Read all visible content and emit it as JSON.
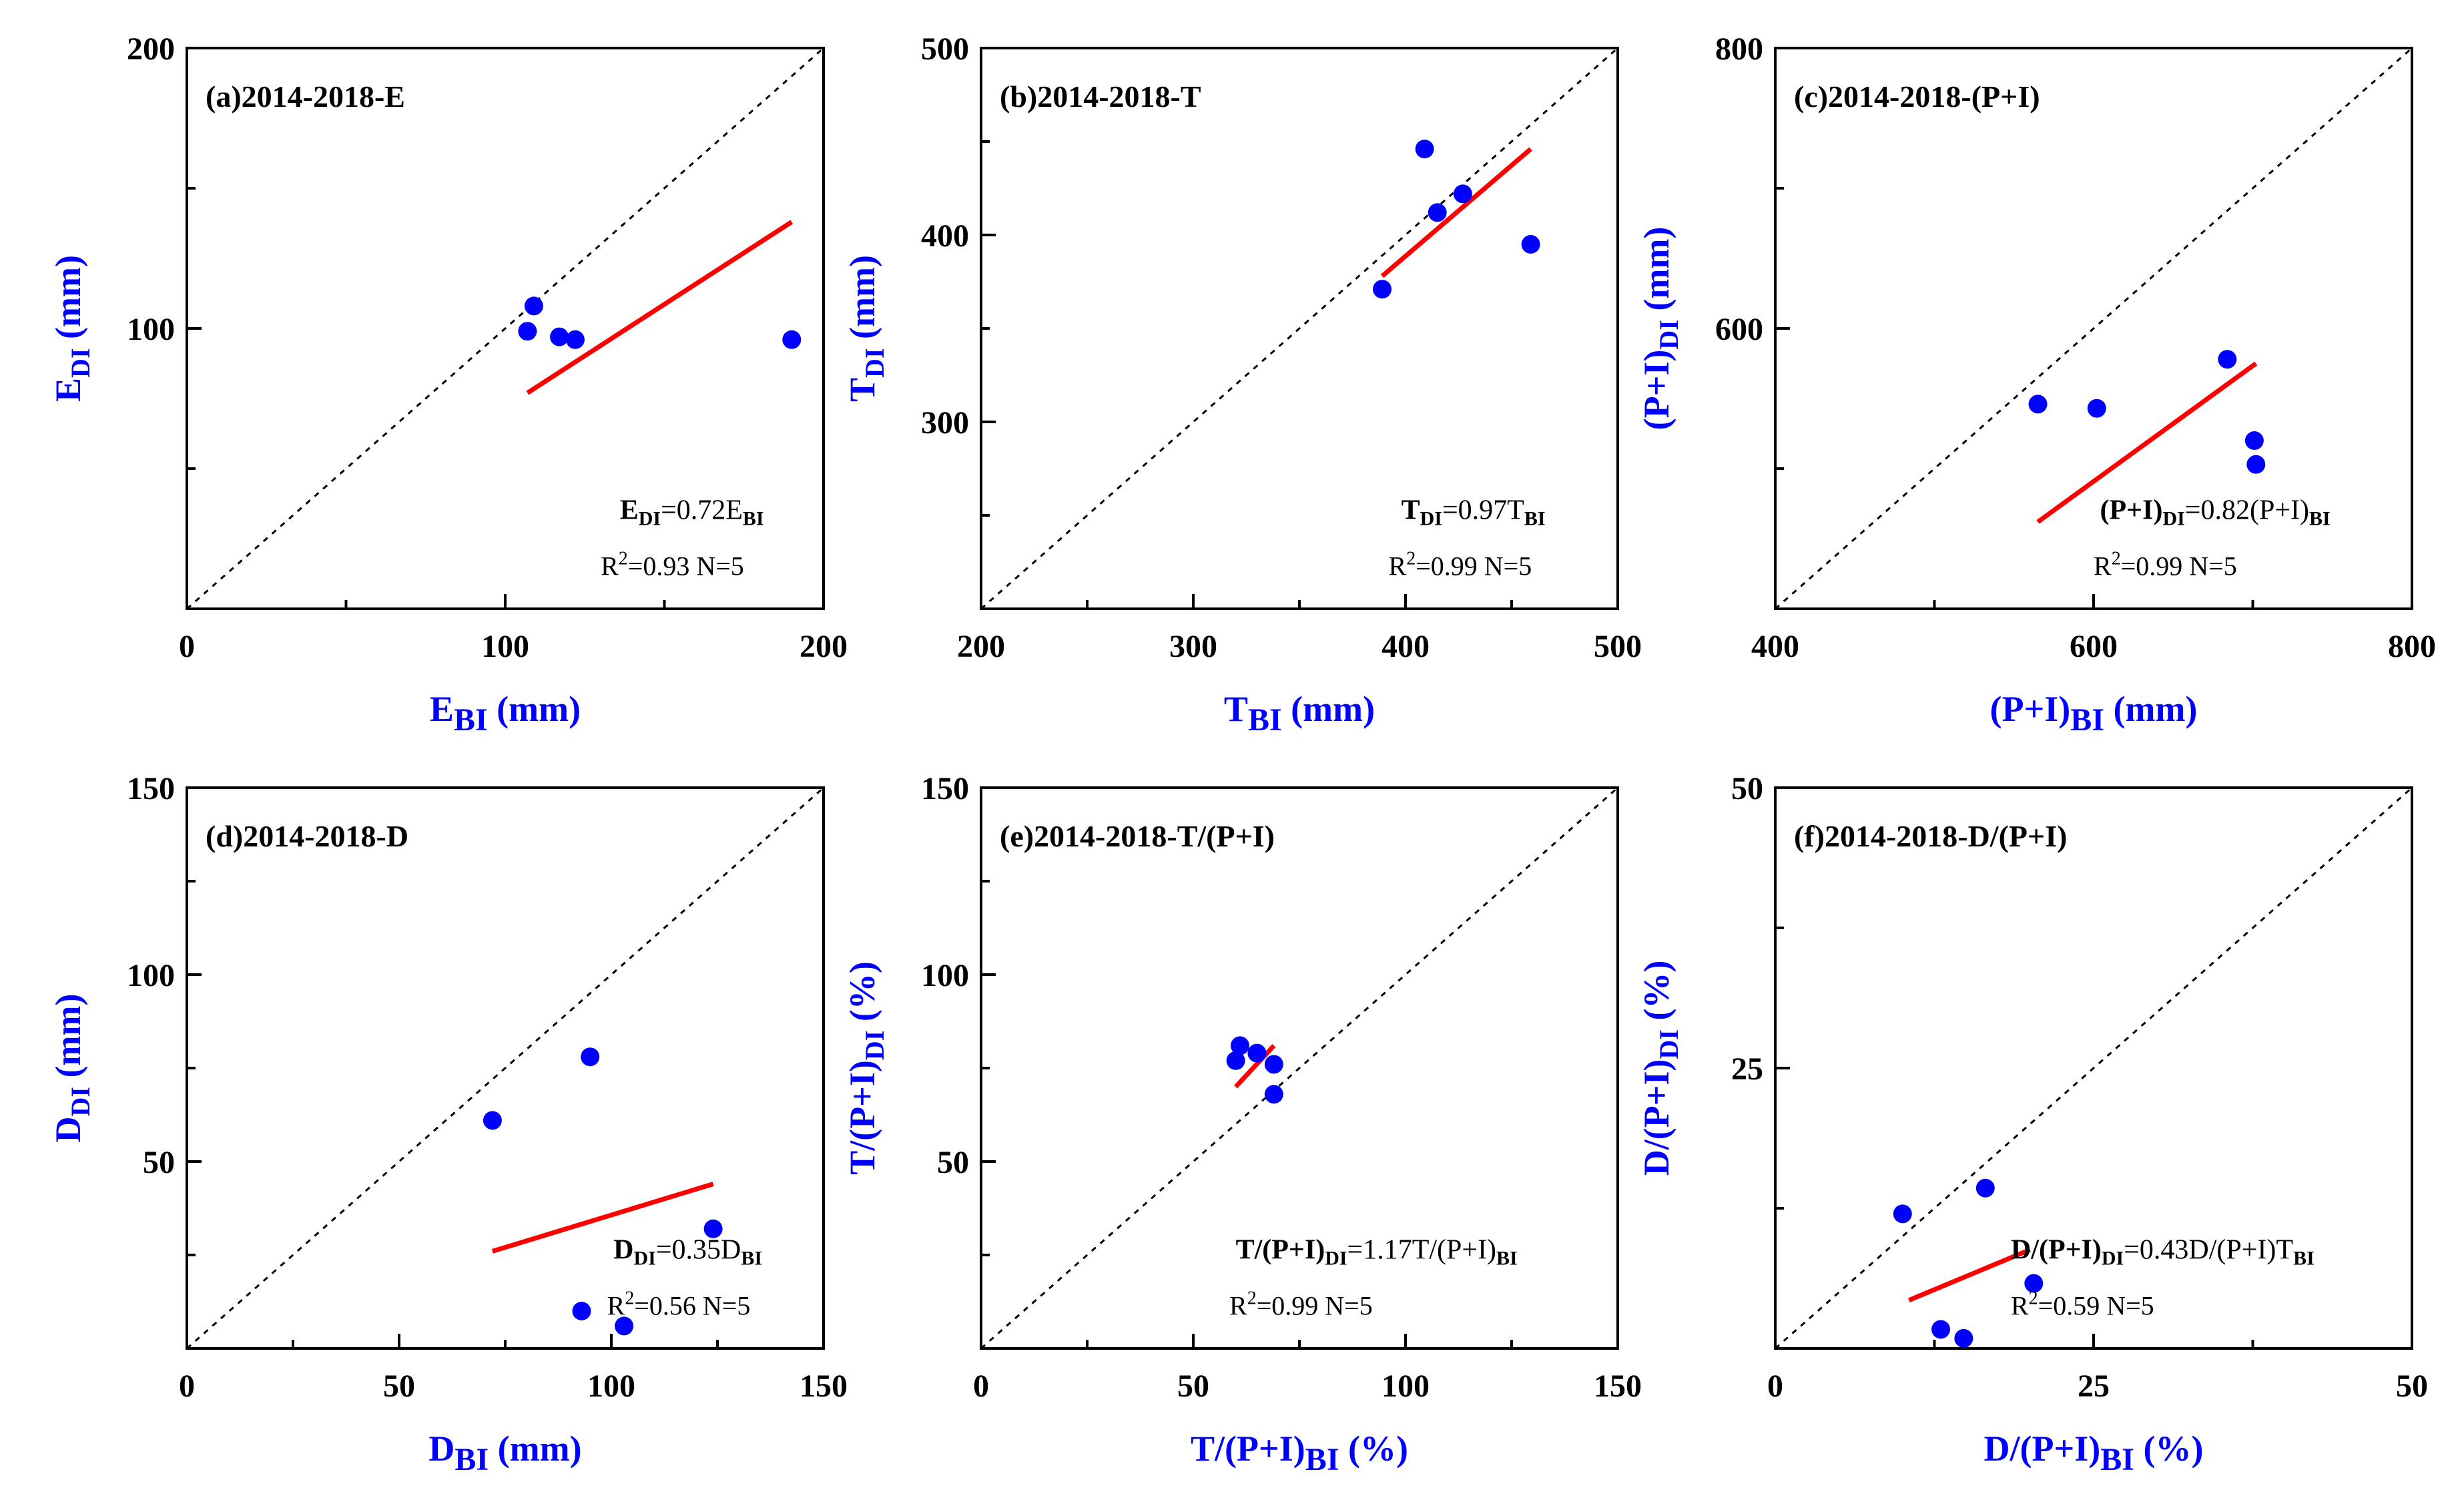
{
  "chart_data": [
    {
      "type": "scatter",
      "title": "(a)2014-2018-E",
      "xlabel": {
        "main": "E",
        "sub": "BI",
        "unit": " (mm)"
      },
      "ylabel": {
        "main": "E",
        "sub": "DI",
        "unit": " (mm)"
      },
      "xlim": [
        0,
        200
      ],
      "ylim": [
        0,
        200
      ],
      "xticks": [
        "0",
        "100",
        "200"
      ],
      "yticks": [
        "100",
        "200"
      ],
      "points": [
        [
          107,
          99
        ],
        [
          109,
          108
        ],
        [
          117,
          97
        ],
        [
          122,
          96
        ],
        [
          190,
          96
        ]
      ],
      "fit": {
        "x": [
          107,
          190
        ],
        "y": [
          77,
          138
        ]
      },
      "equation": {
        "lhs": "E",
        "lhs_sub": "DI",
        "mid": "=0.72E",
        "rhs_sub": "BI"
      },
      "r2": "=0.93",
      "n": "N=5"
    },
    {
      "type": "scatter",
      "title": "(b)2014-2018-T",
      "xlabel": {
        "main": "T",
        "sub": "BI",
        "unit": " (mm)"
      },
      "ylabel": {
        "main": "T",
        "sub": "DI",
        "unit": " (mm)"
      },
      "xlim": [
        200,
        500
      ],
      "ylim": [
        200,
        500
      ],
      "xticks": [
        "200",
        "300",
        "400",
        "500"
      ],
      "yticks": [
        "300",
        "400",
        "500"
      ],
      "points": [
        [
          389,
          371
        ],
        [
          409,
          446
        ],
        [
          415,
          412
        ],
        [
          427,
          422
        ],
        [
          459,
          395
        ]
      ],
      "fit": {
        "x": [
          389,
          459
        ],
        "y": [
          378,
          446
        ]
      },
      "equation": {
        "lhs": "T",
        "lhs_sub": "DI",
        "mid": "=0.97T",
        "rhs_sub": "BI"
      },
      "r2": "=0.99",
      "n": "N=5"
    },
    {
      "type": "scatter",
      "title": "(c)2014-2018-(P+I)",
      "xlabel": {
        "main": "(P+I)",
        "sub": "BI",
        "unit": " (mm)"
      },
      "ylabel": {
        "main": "(P+I)",
        "sub": "DI",
        "unit": " (mm)"
      },
      "xlim": [
        400,
        800
      ],
      "ylim": [
        400,
        800
      ],
      "xticks": [
        "400",
        "600",
        "800"
      ],
      "yticks": [
        "600",
        "800"
      ],
      "points": [
        [
          565,
          546
        ],
        [
          602,
          543
        ],
        [
          684,
          578
        ],
        [
          701,
          520
        ],
        [
          702,
          503
        ]
      ],
      "fit": {
        "x": [
          565,
          702
        ],
        "y": [
          462,
          575
        ]
      },
      "equation": {
        "lhs": "(P+I)",
        "lhs_sub": "DI",
        "mid": "=0.82(P+I)",
        "rhs_sub": "BI"
      },
      "r2": "=0.99",
      "n": "N=5"
    },
    {
      "type": "scatter",
      "title": "(d)2014-2018-D",
      "xlabel": {
        "main": "D",
        "sub": "BI",
        "unit": " (mm)"
      },
      "ylabel": {
        "main": "D",
        "sub": "DI",
        "unit": " (mm)"
      },
      "xlim": [
        0,
        150
      ],
      "ylim": [
        0,
        150
      ],
      "xticks": [
        "0",
        "50",
        "100",
        "150"
      ],
      "yticks": [
        "50",
        "100",
        "150"
      ],
      "points": [
        [
          72,
          61
        ],
        [
          95,
          78
        ],
        [
          124,
          32
        ],
        [
          93,
          10
        ],
        [
          103,
          6
        ]
      ],
      "fit": {
        "x": [
          72,
          124
        ],
        "y": [
          26,
          44
        ]
      },
      "equation": {
        "lhs": "D",
        "lhs_sub": "DI",
        "mid": "=0.35D",
        "rhs_sub": "BI"
      },
      "r2": "=0.56",
      "n": "N=5"
    },
    {
      "type": "scatter",
      "title": "(e)2014-2018-T/(P+I)",
      "xlabel": {
        "main": "T/(P+I)",
        "sub": "BI",
        "unit": " (%)"
      },
      "ylabel": {
        "main": "T/(P+I)",
        "sub": "DI",
        "unit": " (%)"
      },
      "xlim": [
        0,
        150
      ],
      "ylim": [
        0,
        150
      ],
      "xticks": [
        "0",
        "50",
        "100",
        "150"
      ],
      "yticks": [
        "50",
        "100",
        "150"
      ],
      "points": [
        [
          60,
          77
        ],
        [
          61,
          81
        ],
        [
          65,
          79
        ],
        [
          69,
          76
        ],
        [
          69,
          68
        ]
      ],
      "fit": {
        "x": [
          60,
          69
        ],
        "y": [
          70,
          81
        ]
      },
      "equation": {
        "lhs": "T/(P+I)",
        "lhs_sub": "DI",
        "mid": "=1.17T/(P+I)",
        "rhs_sub": "BI"
      },
      "r2": "=0.99",
      "n": "N=5"
    },
    {
      "type": "scatter",
      "title": "(f)2014-2018-D/(P+I)",
      "xlabel": {
        "main": "D/(P+I)",
        "sub": "BI",
        "unit": " (%)"
      },
      "ylabel": {
        "main": "D/(P+I)",
        "sub": "DI",
        "unit": " (%)"
      },
      "xlim": [
        0,
        50
      ],
      "ylim": [
        0,
        50
      ],
      "xticks": [
        "0",
        "25",
        "50"
      ],
      "yticks": [
        "25",
        "50"
      ],
      "points": [
        [
          10,
          12
        ],
        [
          16.5,
          14.3
        ],
        [
          20.3,
          5.8
        ],
        [
          13,
          1.7
        ],
        [
          14.8,
          0.9
        ]
      ],
      "fit": {
        "x": [
          10.5,
          20
        ],
        "y": [
          4.3,
          8.8
        ]
      },
      "equation": {
        "lhs": "D/(P+I)",
        "lhs_sub": "DI",
        "mid": "=0.43D/(P+I)T",
        "rhs_sub": "BI"
      },
      "r2": "=0.59",
      "n": "N=5"
    }
  ],
  "style": {
    "point_color": "#0000ff",
    "fit_color": "#ff0000",
    "axis_label_color": "#0000ff",
    "identity_line_color": "#000000"
  }
}
